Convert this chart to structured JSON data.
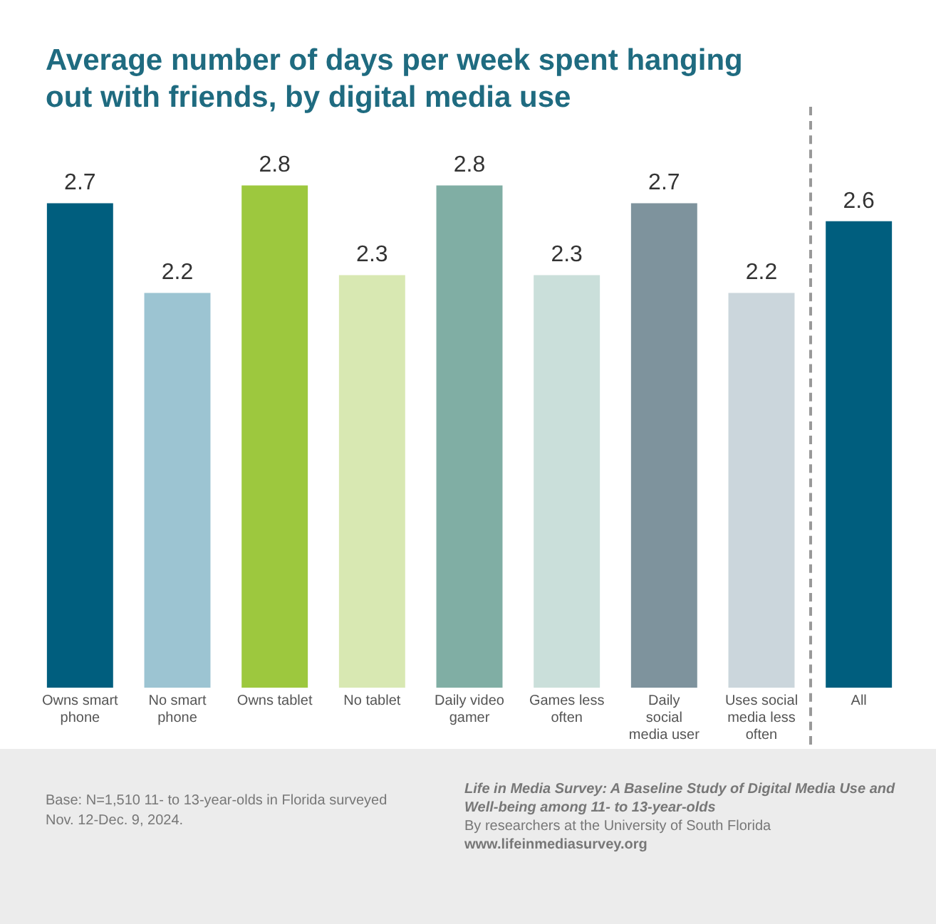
{
  "chart_data": {
    "type": "bar",
    "title": "Average number of days per week spent hanging out with friends, by digital media use",
    "categories": [
      "Owns smart phone",
      "No smart phone",
      "Owns tablet",
      "No tablet",
      "Daily video gamer",
      "Games less often",
      "Daily social media user",
      "Uses social media less often",
      "All"
    ],
    "values": [
      2.7,
      2.2,
      2.8,
      2.3,
      2.8,
      2.3,
      2.7,
      2.2,
      2.6
    ],
    "colors": [
      "#005e7e",
      "#9cc4d2",
      "#9dc83e",
      "#d8e8b2",
      "#80aea4",
      "#cadfda",
      "#7e939d",
      "#cbd6dc",
      "#005e7e"
    ],
    "data_labels": true,
    "tick_labels": "x",
    "grid": false,
    "legend": false,
    "annotations": [
      "Base: N=1,510 11- to 13-year-olds in Florida surveyed Nov. 12-Dec. 9, 2024.",
      "Life in Media Survey: A Baseline Study of Digital Media Use and Well-being among 11- to 13-year-olds",
      "By researchers at the University of South Florida",
      "www.lifeinmediasurvey.org"
    ]
  }
}
